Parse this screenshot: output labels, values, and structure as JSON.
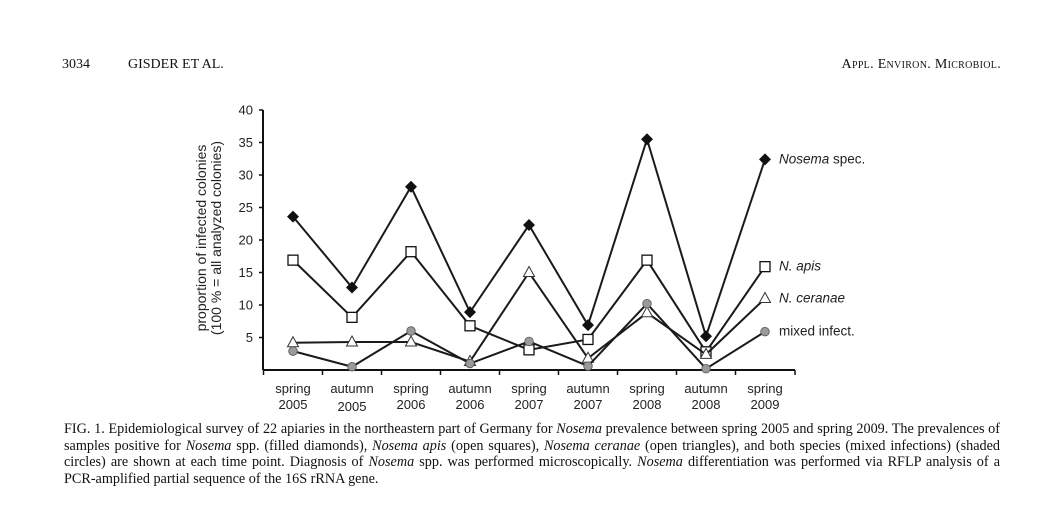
{
  "header": {
    "page_number": "3034",
    "authors": "GISDER ET AL.",
    "journal": "Appl. Environ. Microbiol."
  },
  "chart_data": {
    "type": "line",
    "ylabel_line1": "proportion of infected colonies",
    "ylabel_line2": "(100 % = all analyzed colonies)",
    "xlabel": "",
    "ylim": [
      0,
      40
    ],
    "yticks": [
      "5",
      "10",
      "15",
      "20",
      "25",
      "30",
      "35",
      "40"
    ],
    "categories": [
      {
        "season": "spring",
        "year": "2005"
      },
      {
        "season": "autumn",
        "year": "2005"
      },
      {
        "season": "spring",
        "year": "2006"
      },
      {
        "season": "autumn",
        "year": "2006"
      },
      {
        "season": "spring",
        "year": "2007"
      },
      {
        "season": "autumn",
        "year": "2007"
      },
      {
        "season": "spring",
        "year": "2008"
      },
      {
        "season": "autumn",
        "year": "2008"
      },
      {
        "season": "spring",
        "year": "2009"
      }
    ],
    "legend_placement": "right (end-of-line labels)",
    "series": [
      {
        "name": "Nosema spec.",
        "label_italic": "Nosema",
        "label_rest": " spec.",
        "marker": "filled-diamond",
        "values": [
          23.6,
          12.7,
          28.2,
          8.9,
          22.3,
          6.9,
          35.5,
          5.2,
          32.4
        ]
      },
      {
        "name": "N. apis",
        "label_italic": "N. apis",
        "label_rest": "",
        "marker": "open-square",
        "values": [
          16.9,
          8.1,
          18.2,
          6.8,
          3.1,
          4.7,
          16.9,
          2.8,
          15.9
        ]
      },
      {
        "name": "N. ceranae",
        "label_italic": "N. ceranae",
        "label_rest": "",
        "marker": "open-triangle",
        "values": [
          4.2,
          4.3,
          4.3,
          1.3,
          15.0,
          1.8,
          8.8,
          2.4,
          11.0
        ]
      },
      {
        "name": "mixed infect.",
        "label_italic": "",
        "label_rest": "mixed infect.",
        "marker": "shaded-circle",
        "values": [
          2.9,
          0.5,
          6.0,
          1.0,
          4.4,
          0.6,
          10.2,
          0.2,
          5.9
        ]
      }
    ],
    "colors": {
      "line": "#1a1a1a",
      "circle_fill": "#9a9a9a"
    }
  },
  "caption": [
    {
      "t": "FIG. 1. Epidemiological survey of 22 apiaries in the northeastern part of Germany for ",
      "i": false
    },
    {
      "t": "Nosema",
      "i": true
    },
    {
      "t": " prevalence between spring 2005 and spring 2009. The prevalences of samples positive for ",
      "i": false
    },
    {
      "t": "Nosema",
      "i": true
    },
    {
      "t": " spp. (filled diamonds), ",
      "i": false
    },
    {
      "t": "Nosema apis",
      "i": true
    },
    {
      "t": " (open squares), ",
      "i": false
    },
    {
      "t": "Nosema ceranae",
      "i": true
    },
    {
      "t": " (open triangles), and both species (mixed infections) (shaded circles) are shown at each time point. Diagnosis of ",
      "i": false
    },
    {
      "t": "Nosema",
      "i": true
    },
    {
      "t": " spp. was performed microscopically. ",
      "i": false
    },
    {
      "t": "Nosema",
      "i": true
    },
    {
      "t": " differentiation was performed via RFLP analysis of a PCR-amplified partial sequence of the 16S rRNA gene.",
      "i": false
    }
  ]
}
